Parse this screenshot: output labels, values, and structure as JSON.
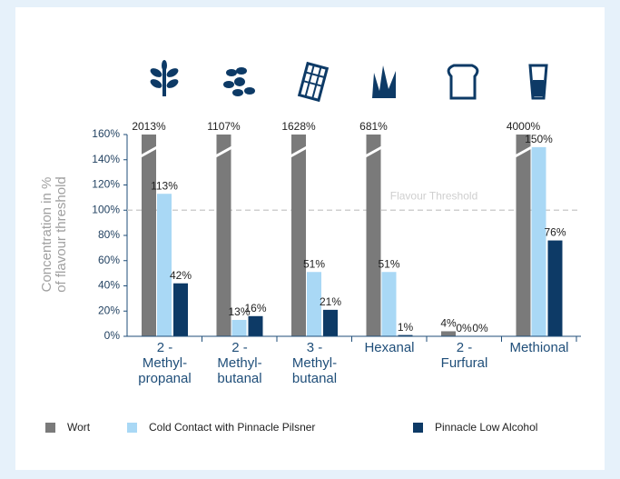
{
  "chart_data": {
    "type": "bar",
    "ylabel": "Concentration in %\nof flavour threshold",
    "categories": [
      "2 -\nMethyl-\npropanal",
      "2 -\nMethyl-\nbutanal",
      "3 -\nMethyl-\nbutanal",
      "Hexanal",
      "2 -\nFurfural",
      "Methional"
    ],
    "series": [
      {
        "name": "Wort",
        "color": "#7a7a7a",
        "values": [
          2013,
          1107,
          1628,
          681,
          4,
          4000
        ],
        "value_labels": [
          "2013%",
          "1107%",
          "1628%",
          "681%",
          "4%",
          "4000%"
        ]
      },
      {
        "name": "Cold Contact with Pinnacle Pilsner",
        "color": "#a9d8f5",
        "values": [
          113,
          13,
          51,
          51,
          0,
          150
        ],
        "value_labels": [
          "113%",
          "13%",
          "51%",
          "51%",
          "0%",
          "150%"
        ]
      },
      {
        "name": "Pinnacle Low Alcohol",
        "color": "#0d3a66",
        "values": [
          42,
          16,
          21,
          1,
          0,
          76
        ],
        "value_labels": [
          "42%",
          "16%",
          "21%",
          "1%",
          "0%",
          "76%"
        ]
      }
    ],
    "ylim": [
      0,
      160
    ],
    "yticks": [
      {
        "value": 0,
        "label": "0%"
      },
      {
        "value": 20,
        "label": "20%"
      },
      {
        "value": 40,
        "label": "40%"
      },
      {
        "value": 60,
        "label": "60%"
      },
      {
        "value": 80,
        "label": "80%"
      },
      {
        "value": 100,
        "label": "100%"
      },
      {
        "value": 120,
        "label": "120%"
      },
      {
        "value": 140,
        "label": "140%"
      },
      {
        "value": 160,
        "label": "160%"
      }
    ],
    "threshold": {
      "value": 100,
      "label": "Flavour Threshold",
      "color": "#cfcfcf"
    },
    "legend": "bottom"
  }
}
